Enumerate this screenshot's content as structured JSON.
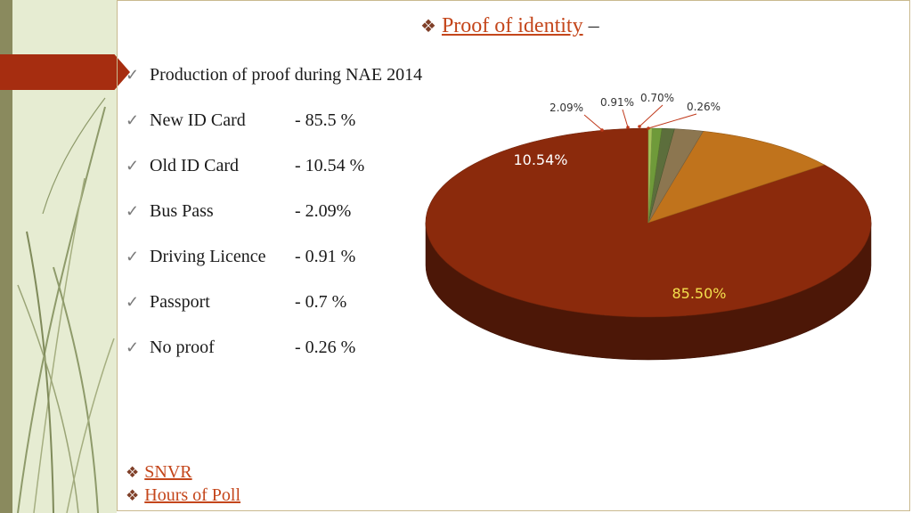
{
  "slide": {
    "title": "Proof of identity",
    "title_suffix": "–",
    "heading": "Production of proof during NAE 2014",
    "items": [
      {
        "label": "New ID Card",
        "value": "- 85.5 %"
      },
      {
        "label": "Old ID Card",
        "value": "- 10.54 %"
      },
      {
        "label": "Bus Pass",
        "value": "- 2.09%"
      },
      {
        "label": "Driving Licence",
        "value": "- 0.91 %"
      },
      {
        "label": "Passport",
        "value": "- 0.7 %"
      },
      {
        "label": "No proof",
        "value": "- 0.26 %"
      }
    ],
    "links": [
      "SNVR",
      "Hours of Poll"
    ],
    "check_glyph": "✓",
    "diamond_glyph": "❖"
  },
  "chart_data": {
    "type": "pie",
    "title": "",
    "categories": [
      "New ID Card",
      "Old ID Card",
      "Bus Pass",
      "Driving Licence",
      "Passport",
      "No proof"
    ],
    "values": [
      85.5,
      10.54,
      2.09,
      0.91,
      0.7,
      0.26
    ],
    "labels": [
      "85.50%",
      "10.54%",
      "2.09%",
      "0.91%",
      "0.70%",
      "0.26%"
    ],
    "colors": [
      "#8b2a0c",
      "#c0731c",
      "#8c7650",
      "#5c6e3c",
      "#6f9a3a",
      "#a3c25a"
    ],
    "label_colors": [
      "#f4e04d",
      "#ffffff",
      "#333333",
      "#333333",
      "#333333",
      "#333333"
    ],
    "legend": false
  }
}
